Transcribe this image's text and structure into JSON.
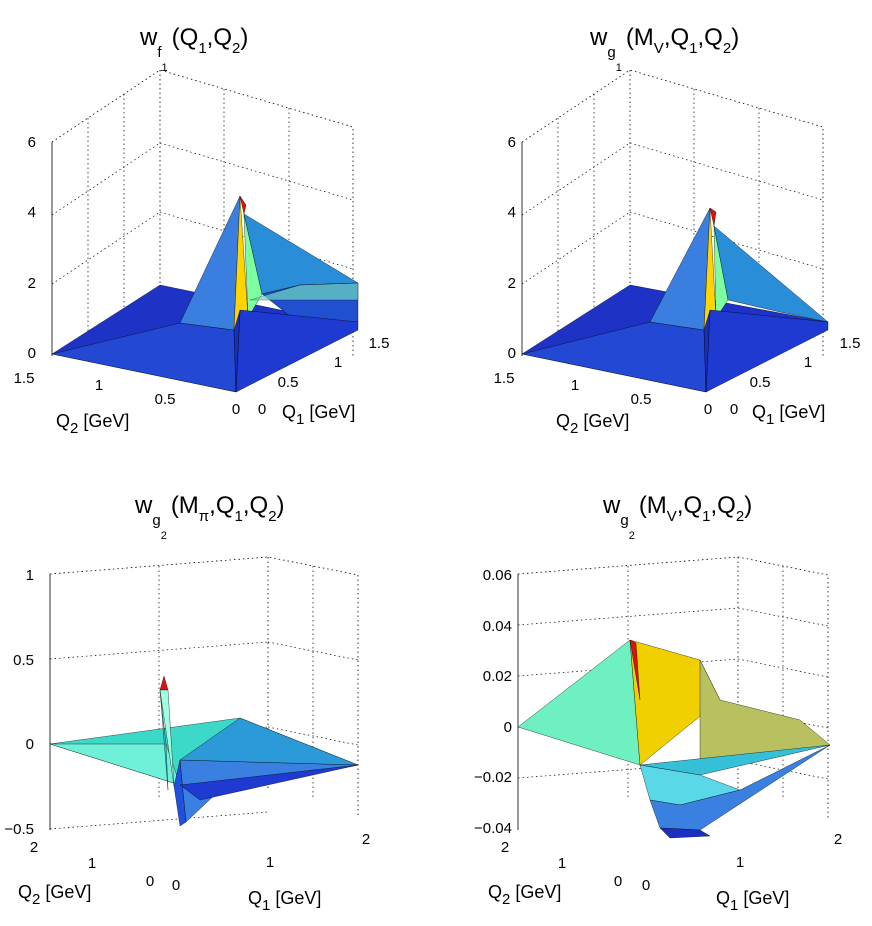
{
  "figure": {
    "panels": [
      {
        "id": "wf1",
        "title": {
          "base": "w",
          "sub": "f",
          "subsub": "1",
          "args": "(Q",
          "a1": "1",
          "comma": ",Q",
          "a2": "2",
          "close": ")"
        },
        "z_ticks": [
          "0",
          "2",
          "4",
          "6"
        ],
        "q2_ticks": [
          "1.5",
          "1",
          "0.5",
          "0"
        ],
        "q1_ticks": [
          "0",
          "0.5",
          "1",
          "1.5"
        ],
        "xlabel": {
          "pre": "Q",
          "sub": "1",
          "post": " [GeV]"
        },
        "ylabel": {
          "pre": "Q",
          "sub": "2",
          "post": " [GeV]"
        }
      },
      {
        "id": "wg1",
        "title": {
          "base": "w",
          "sub": "g",
          "subsub": "1",
          "args": "(M",
          "a0": "V",
          "mid": ",Q",
          "a1": "1",
          "comma": ",Q",
          "a2": "2",
          "close": ")"
        },
        "z_ticks": [
          "0",
          "2",
          "4",
          "6"
        ],
        "q2_ticks": [
          "1.5",
          "1",
          "0.5",
          "0"
        ],
        "q1_ticks": [
          "0",
          "0.5",
          "1",
          "1.5"
        ],
        "xlabel": {
          "pre": "Q",
          "sub": "1",
          "post": " [GeV]"
        },
        "ylabel": {
          "pre": "Q",
          "sub": "2",
          "post": " [GeV]"
        }
      },
      {
        "id": "wg2pi",
        "title": {
          "base": "w",
          "sub": "g",
          "subsub": "2",
          "args": "(M",
          "a0": "π",
          "mid": ",Q",
          "a1": "1",
          "comma": ",Q",
          "a2": "2",
          "close": ")"
        },
        "z_ticks": [
          "−0.5",
          "0",
          "0.5",
          "1"
        ],
        "q2_ticks": [
          "2",
          "1",
          "0"
        ],
        "q1_ticks": [
          "0",
          "1",
          "2"
        ],
        "xlabel": {
          "pre": "Q",
          "sub": "1",
          "post": " [GeV]"
        },
        "ylabel": {
          "pre": "Q",
          "sub": "2",
          "post": " [GeV]"
        }
      },
      {
        "id": "wg2v",
        "title": {
          "base": "w",
          "sub": "g",
          "subsub": "2",
          "args": "(M",
          "a0": "V",
          "mid": ",Q",
          "a1": "1",
          "comma": ",Q",
          "a2": "2",
          "close": ")"
        },
        "z_ticks": [
          "−0.04",
          "−0.02",
          "0",
          "0.02",
          "0.04",
          "0.06"
        ],
        "q2_ticks": [
          "2",
          "1",
          "0"
        ],
        "q1_ticks": [
          "0",
          "1",
          "2"
        ],
        "xlabel": {
          "pre": "Q",
          "sub": "1",
          "post": " [GeV]"
        },
        "ylabel": {
          "pre": "Q",
          "sub": "2",
          "post": " [GeV]"
        }
      }
    ]
  },
  "chart_data": [
    {
      "type": "surface",
      "title": "w_f1(Q1,Q2)",
      "xlabel": "Q1 [GeV]",
      "ylabel": "Q2 [GeV]",
      "xlim": [
        0,
        1.5
      ],
      "ylim": [
        0,
        1.5
      ],
      "zlim": [
        0,
        6
      ],
      "colormap": "jet",
      "peak": {
        "Q1": 0,
        "Q2": 0,
        "value": 4.6
      },
      "ridge": {
        "along": "Q1",
        "at_Q1": 1.5,
        "value": 1.0
      }
    },
    {
      "type": "surface",
      "title": "w_g1(M_V,Q1,Q2)",
      "xlabel": "Q1 [GeV]",
      "ylabel": "Q2 [GeV]",
      "xlim": [
        0,
        1.5
      ],
      "ylim": [
        0,
        1.5
      ],
      "zlim": [
        0,
        6
      ],
      "colormap": "jet",
      "peak": {
        "Q1": 0,
        "Q2": 0,
        "value": 4.2
      },
      "ridge": {
        "along": "Q1",
        "at_Q1": 1.5,
        "value": 0.2
      }
    },
    {
      "type": "surface",
      "title": "w_g2(M_pi,Q1,Q2)",
      "xlabel": "Q1 [GeV]",
      "ylabel": "Q2 [GeV]",
      "xlim": [
        0,
        2
      ],
      "ylim": [
        0,
        2
      ],
      "zlim": [
        -0.5,
        1
      ],
      "colormap": "jet",
      "peak": {
        "Q1": 0,
        "Q2": 0,
        "value": 0.43
      },
      "minimum": {
        "Q1": 0.3,
        "Q2": 0.05,
        "value": -0.42
      }
    },
    {
      "type": "surface",
      "title": "w_g2(M_V,Q1,Q2)",
      "xlabel": "Q1 [GeV]",
      "ylabel": "Q2 [GeV]",
      "xlim": [
        0,
        2
      ],
      "ylim": [
        0,
        2
      ],
      "zlim": [
        -0.04,
        0.06
      ],
      "colormap": "jet",
      "peak": {
        "Q1": 0.05,
        "Q2": 0.2,
        "value": 0.034
      },
      "minimum": {
        "Q1": 0.6,
        "Q2": 0.1,
        "value": -0.036
      }
    }
  ]
}
